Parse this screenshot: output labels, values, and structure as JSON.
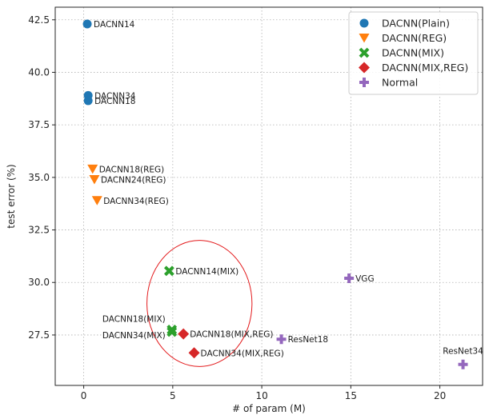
{
  "chart_data": {
    "type": "scatter",
    "xlabel": "# of param (M)",
    "ylabel": "test error (%)",
    "xlim": [
      -1.6,
      22.4
    ],
    "ylim": [
      25.1,
      43.1
    ],
    "xticks": [
      0,
      5,
      10,
      15,
      20
    ],
    "yticks": [
      27.5,
      30.0,
      32.5,
      35.0,
      37.5,
      40.0,
      42.5
    ],
    "grid": true,
    "legend_position": "top-right",
    "series": [
      {
        "name": "DACNN(Plain)",
        "marker": "circle",
        "color": "#1f77b4",
        "points": [
          {
            "x": 0.2,
            "y": 42.3,
            "label": "DACNN14"
          },
          {
            "x": 0.25,
            "y": 38.9,
            "label": "DACNN34"
          },
          {
            "x": 0.25,
            "y": 38.65,
            "label": "DACNN18"
          }
        ]
      },
      {
        "name": "DACNN(REG)",
        "marker": "triangle-down",
        "color": "#ff7f0e",
        "points": [
          {
            "x": 0.5,
            "y": 35.4,
            "label": "DACNN18(REG)"
          },
          {
            "x": 0.6,
            "y": 34.9,
            "label": "DACNN24(REG)"
          },
          {
            "x": 0.75,
            "y": 33.9,
            "label": "DACNN34(REG)"
          }
        ]
      },
      {
        "name": "DACNN(MIX)",
        "marker": "x",
        "color": "#2ca02c",
        "points": [
          {
            "x": 4.8,
            "y": 30.55,
            "label": "DACNN14(MIX)"
          },
          {
            "x": 4.95,
            "y": 27.75,
            "label": "DACNN18(MIX)"
          },
          {
            "x": 4.95,
            "y": 27.65,
            "label": "DACNN34(MIX)"
          }
        ]
      },
      {
        "name": "DACNN(MIX,REG)",
        "marker": "diamond",
        "color": "#d62728",
        "points": [
          {
            "x": 5.6,
            "y": 27.55,
            "label": "DACNN18(MIX,REG)"
          },
          {
            "x": 6.2,
            "y": 26.65,
            "label": "DACNN34(MIX,REG)"
          }
        ]
      },
      {
        "name": "Normal",
        "marker": "plus",
        "color": "#9467bd",
        "points": [
          {
            "x": 14.9,
            "y": 30.2,
            "label": "VGG"
          },
          {
            "x": 11.1,
            "y": 27.3,
            "label": "ResNet18"
          },
          {
            "x": 21.3,
            "y": 26.1,
            "label": "ResNet34"
          }
        ]
      }
    ],
    "annotation": {
      "shape": "ellipse",
      "color": "#e31a1c",
      "center": {
        "x": 6.5,
        "y": 29.0
      },
      "radius": {
        "x": 2.95,
        "y": 3.0
      }
    }
  }
}
